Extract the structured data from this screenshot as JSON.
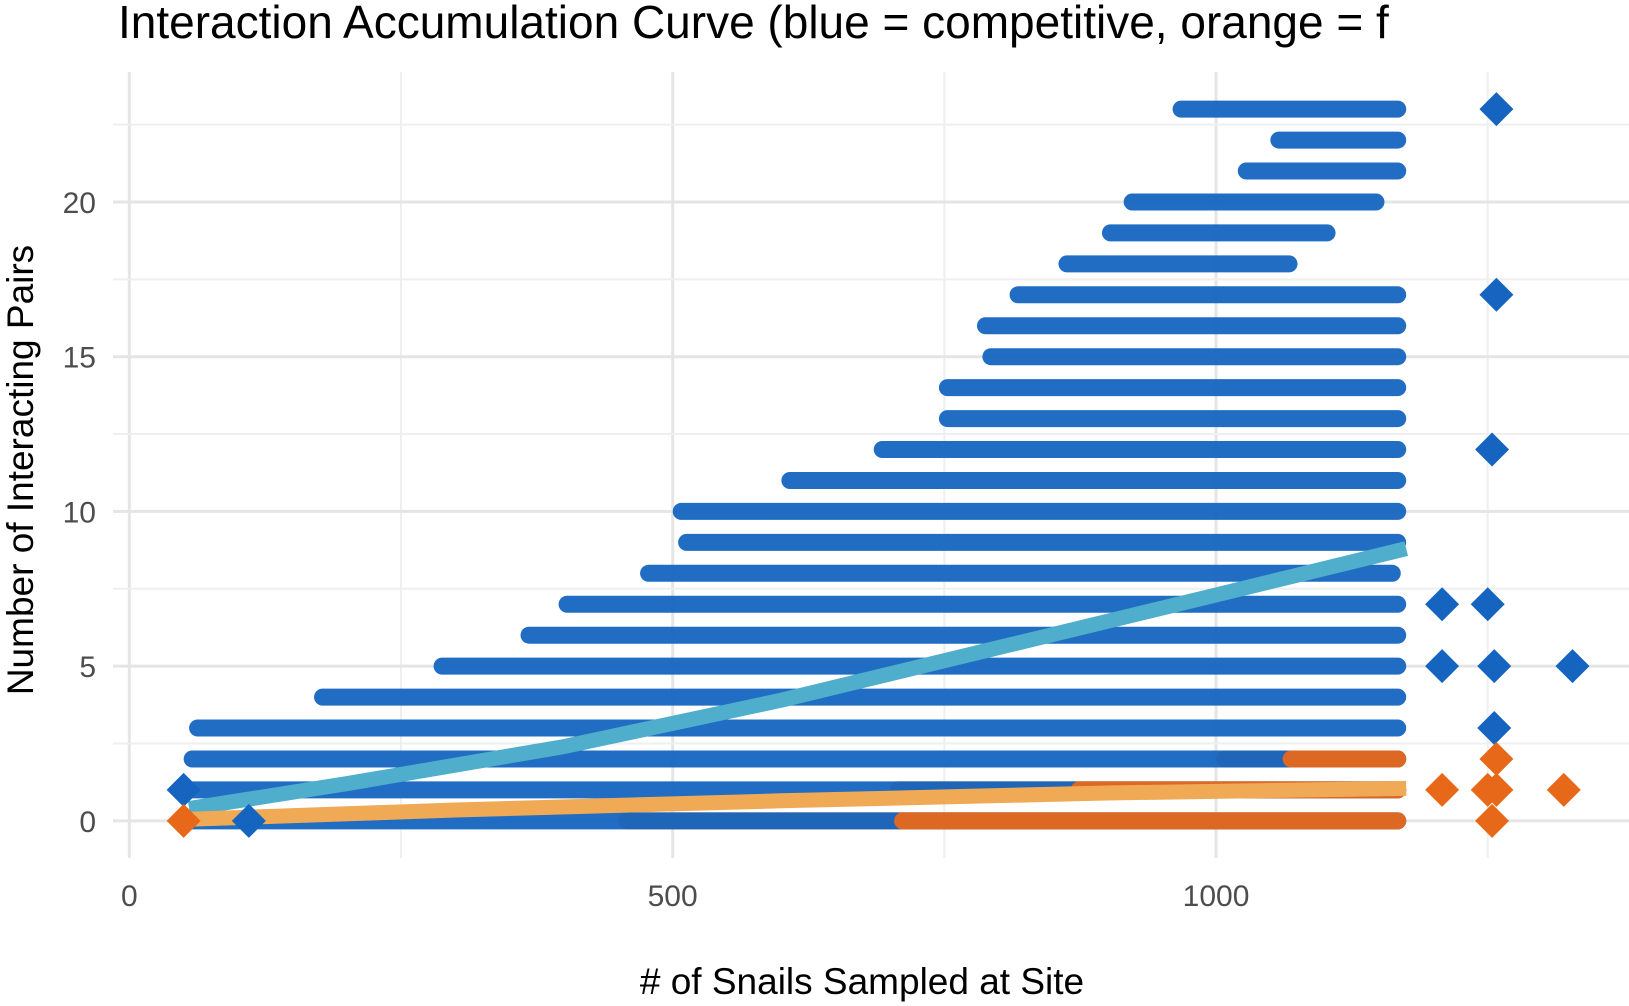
{
  "chart_data": {
    "type": "scatter",
    "title": "Interaction Accumulation Curve (blue = competitive, orange = f",
    "xlabel": "# of Snails Sampled at Site",
    "ylabel": "Number of Interacting Pairs",
    "xlim": [
      -15,
      1380
    ],
    "ylim": [
      -1.2,
      24.2
    ],
    "x_ticks": [
      0,
      500,
      1000
    ],
    "x_tick_labels": [
      "0",
      "500",
      "1000"
    ],
    "y_ticks": [
      0,
      5,
      10,
      15,
      20
    ],
    "y_tick_labels": [
      "0",
      "5",
      "10",
      "15",
      "20"
    ],
    "grid": true,
    "legend": "none",
    "colors": {
      "competitive": "#1565c0",
      "facilitative": "#e8681a",
      "competitive_fit": "#4eaecb",
      "facilitative_fit": "#f0aa55"
    },
    "point_bands": [
      {
        "series": "competitive",
        "y": 23,
        "x_min": 960,
        "x_max": 1175
      },
      {
        "series": "competitive",
        "y": 22,
        "x_min": 1050,
        "x_max": 1175
      },
      {
        "series": "competitive",
        "y": 21,
        "x_min": 1020,
        "x_max": 1175
      },
      {
        "series": "competitive",
        "y": 20,
        "x_min": 915,
        "x_max": 1155
      },
      {
        "series": "competitive",
        "y": 19,
        "x_min": 895,
        "x_max": 1110
      },
      {
        "series": "competitive",
        "y": 18,
        "x_min": 855,
        "x_max": 1075
      },
      {
        "series": "competitive",
        "y": 17,
        "x_min": 810,
        "x_max": 1175
      },
      {
        "series": "competitive",
        "y": 16,
        "x_min": 780,
        "x_max": 1175
      },
      {
        "series": "competitive",
        "y": 15,
        "x_min": 785,
        "x_max": 1175
      },
      {
        "series": "competitive",
        "y": 14,
        "x_min": 745,
        "x_max": 1175
      },
      {
        "series": "competitive",
        "y": 13,
        "x_min": 745,
        "x_max": 1175
      },
      {
        "series": "competitive",
        "y": 12,
        "x_min": 685,
        "x_max": 1175
      },
      {
        "series": "competitive",
        "y": 11,
        "x_min": 600,
        "x_max": 1175
      },
      {
        "series": "competitive",
        "y": 10,
        "x_min": 500,
        "x_max": 1175
      },
      {
        "series": "competitive",
        "y": 9,
        "x_min": 505,
        "x_max": 1175
      },
      {
        "series": "competitive",
        "y": 8,
        "x_min": 470,
        "x_max": 1170
      },
      {
        "series": "competitive",
        "y": 7,
        "x_min": 395,
        "x_max": 1175
      },
      {
        "series": "competitive",
        "y": 6,
        "x_min": 360,
        "x_max": 1175
      },
      {
        "series": "competitive",
        "y": 5,
        "x_min": 280,
        "x_max": 1175
      },
      {
        "series": "competitive",
        "y": 4,
        "x_min": 170,
        "x_max": 1175
      },
      {
        "series": "competitive",
        "y": 3,
        "x_min": 55,
        "x_max": 1175
      },
      {
        "series": "competitive",
        "y": 2,
        "x_min": 50,
        "x_max": 1175
      },
      {
        "series": "competitive",
        "y": 1,
        "x_min": 50,
        "x_max": 1175
      },
      {
        "series": "competitive",
        "y": 0,
        "x_min": 50,
        "x_max": 1175
      },
      {
        "series": "facilitative",
        "y": 2,
        "x_min": 1000,
        "x_max": 1175
      },
      {
        "series": "facilitative",
        "y": 1,
        "x_min": 700,
        "x_max": 1175
      },
      {
        "series": "facilitative",
        "y": 0,
        "x_min": 450,
        "x_max": 1175
      }
    ],
    "outlier_markers": [
      {
        "series": "competitive",
        "x": 1258,
        "y": 23
      },
      {
        "series": "competitive",
        "x": 1258,
        "y": 17
      },
      {
        "series": "competitive",
        "x": 1254,
        "y": 12
      },
      {
        "series": "competitive",
        "x": 1208,
        "y": 7
      },
      {
        "series": "competitive",
        "x": 1250,
        "y": 7
      },
      {
        "series": "competitive",
        "x": 1208,
        "y": 5
      },
      {
        "series": "competitive",
        "x": 1256,
        "y": 5
      },
      {
        "series": "competitive",
        "x": 1328,
        "y": 5
      },
      {
        "series": "competitive",
        "x": 1256,
        "y": 3
      },
      {
        "series": "competitive",
        "x": 50,
        "y": 1
      },
      {
        "series": "competitive",
        "x": 110,
        "y": 0
      },
      {
        "series": "facilitative",
        "x": 50,
        "y": 0
      },
      {
        "series": "facilitative",
        "x": 1208,
        "y": 1
      },
      {
        "series": "facilitative",
        "x": 1250,
        "y": 1
      },
      {
        "series": "facilitative",
        "x": 1258,
        "y": 1
      },
      {
        "series": "facilitative",
        "x": 1320,
        "y": 1
      },
      {
        "series": "facilitative",
        "x": 1258,
        "y": 2
      },
      {
        "series": "facilitative",
        "x": 1254,
        "y": 0
      }
    ],
    "fit_lines": [
      {
        "series": "competitive",
        "points": [
          [
            55,
            0.4
          ],
          [
            200,
            1.2
          ],
          [
            400,
            2.4
          ],
          [
            600,
            3.9
          ],
          [
            800,
            5.6
          ],
          [
            1000,
            7.3
          ],
          [
            1175,
            8.8
          ]
        ]
      },
      {
        "series": "facilitative",
        "points": [
          [
            55,
            0.05
          ],
          [
            300,
            0.35
          ],
          [
            600,
            0.65
          ],
          [
            900,
            0.9
          ],
          [
            1175,
            1.05
          ]
        ]
      }
    ]
  }
}
